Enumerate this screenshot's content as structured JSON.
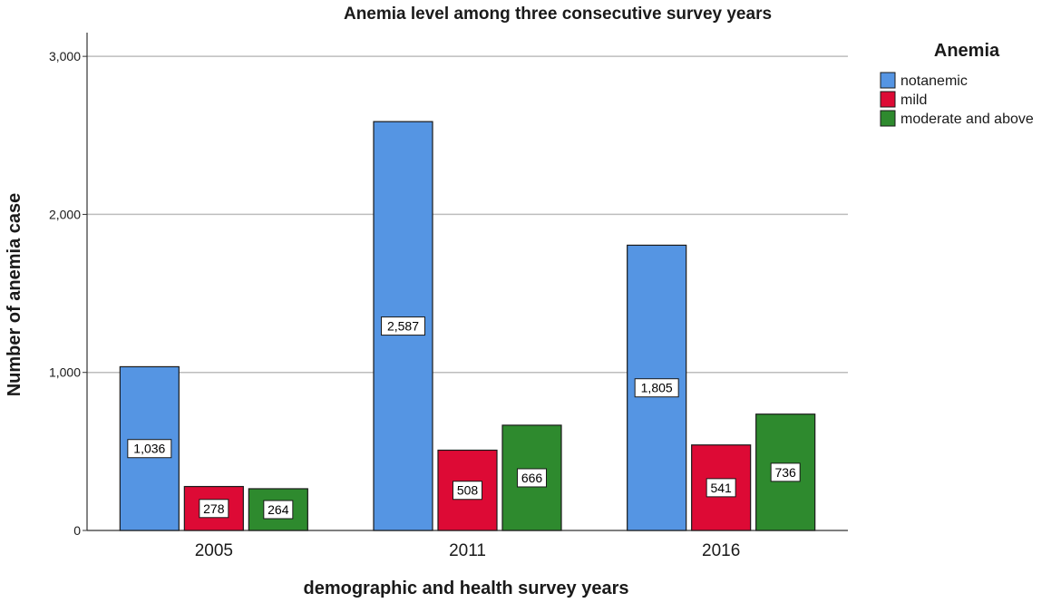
{
  "chart_data": {
    "type": "bar",
    "title": "Anemia level among three consecutive  survey years",
    "xlabel": "demographic and health survey years",
    "ylabel": "Number of anemia case",
    "categories": [
      "2005",
      "2011",
      "2016"
    ],
    "series": [
      {
        "name": "notanemic",
        "values": [
          1036,
          2587,
          1805
        ],
        "labels": [
          "1,036",
          "2,587",
          "1,805"
        ],
        "color": "#5595e3"
      },
      {
        "name": "mild",
        "values": [
          278,
          508,
          541
        ],
        "labels": [
          "278",
          "508",
          "541"
        ],
        "color": "#dd0a35"
      },
      {
        "name": "moderate and above",
        "values": [
          264,
          666,
          736
        ],
        "labels": [
          "264",
          "666",
          "736"
        ],
        "color": "#2e8a2e"
      }
    ],
    "ylim": [
      0,
      3150
    ],
    "yticks": [
      0,
      1000,
      2000,
      3000
    ],
    "ytick_labels": [
      "0",
      "1,000",
      "2,000",
      "3,000"
    ],
    "grid": true,
    "legend_title": "Anemia",
    "legend_position": "top-right"
  }
}
